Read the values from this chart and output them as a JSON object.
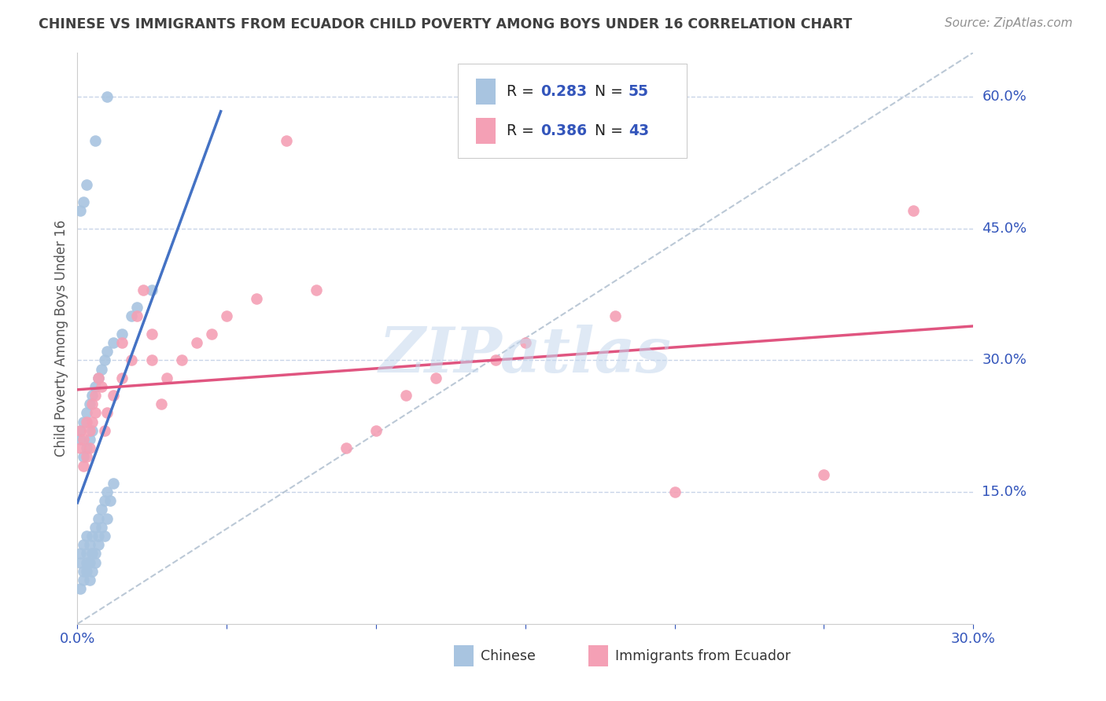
{
  "title": "CHINESE VS IMMIGRANTS FROM ECUADOR CHILD POVERTY AMONG BOYS UNDER 16 CORRELATION CHART",
  "source": "Source: ZipAtlas.com",
  "ylabel": "Child Poverty Among Boys Under 16",
  "R_chinese": 0.283,
  "N_chinese": 55,
  "R_ecuador": 0.386,
  "N_ecuador": 43,
  "color_chinese": "#a8c4e0",
  "color_ecuador": "#f4a0b5",
  "color_chinese_line": "#4472c4",
  "color_ecuador_line": "#e05580",
  "color_diagonal": "#aabbcc",
  "title_color": "#404040",
  "source_color": "#909090",
  "label_color": "#3355bb",
  "watermark_color": "#c5d8ee",
  "grid_color": "#c8d4e8",
  "background_color": "#ffffff",
  "xlim": [
    0.0,
    0.3
  ],
  "ylim": [
    0.0,
    0.65
  ],
  "ytick_positions": [
    0.15,
    0.3,
    0.45,
    0.6
  ],
  "ytick_labels": [
    "15.0%",
    "30.0%",
    "45.0%",
    "60.0%"
  ],
  "chinese_x": [
    0.001,
    0.001,
    0.001,
    0.002,
    0.002,
    0.002,
    0.003,
    0.003,
    0.003,
    0.003,
    0.004,
    0.004,
    0.004,
    0.005,
    0.005,
    0.005,
    0.006,
    0.006,
    0.006,
    0.007,
    0.007,
    0.007,
    0.008,
    0.008,
    0.009,
    0.009,
    0.01,
    0.01,
    0.011,
    0.012,
    0.001,
    0.001,
    0.002,
    0.002,
    0.003,
    0.003,
    0.004,
    0.004,
    0.005,
    0.005,
    0.006,
    0.007,
    0.008,
    0.009,
    0.01,
    0.012,
    0.015,
    0.018,
    0.02,
    0.025,
    0.001,
    0.002,
    0.003,
    0.006,
    0.01
  ],
  "chinese_y": [
    0.07,
    0.08,
    0.04,
    0.06,
    0.09,
    0.05,
    0.07,
    0.08,
    0.06,
    0.1,
    0.05,
    0.09,
    0.07,
    0.06,
    0.1,
    0.08,
    0.08,
    0.11,
    0.07,
    0.09,
    0.12,
    0.1,
    0.11,
    0.13,
    0.1,
    0.14,
    0.12,
    0.15,
    0.14,
    0.16,
    0.21,
    0.22,
    0.19,
    0.23,
    0.2,
    0.24,
    0.21,
    0.25,
    0.22,
    0.26,
    0.27,
    0.28,
    0.29,
    0.3,
    0.31,
    0.32,
    0.33,
    0.35,
    0.36,
    0.38,
    0.47,
    0.48,
    0.5,
    0.55,
    0.6
  ],
  "ecuador_x": [
    0.001,
    0.001,
    0.002,
    0.002,
    0.003,
    0.003,
    0.004,
    0.004,
    0.005,
    0.005,
    0.006,
    0.006,
    0.007,
    0.008,
    0.009,
    0.01,
    0.012,
    0.015,
    0.015,
    0.018,
    0.02,
    0.022,
    0.025,
    0.025,
    0.028,
    0.03,
    0.035,
    0.04,
    0.045,
    0.05,
    0.06,
    0.07,
    0.08,
    0.09,
    0.1,
    0.11,
    0.12,
    0.14,
    0.15,
    0.18,
    0.2,
    0.25,
    0.28
  ],
  "ecuador_y": [
    0.2,
    0.22,
    0.18,
    0.21,
    0.23,
    0.19,
    0.2,
    0.22,
    0.25,
    0.23,
    0.24,
    0.26,
    0.28,
    0.27,
    0.22,
    0.24,
    0.26,
    0.28,
    0.32,
    0.3,
    0.35,
    0.38,
    0.3,
    0.33,
    0.25,
    0.28,
    0.3,
    0.32,
    0.33,
    0.35,
    0.37,
    0.55,
    0.38,
    0.2,
    0.22,
    0.26,
    0.28,
    0.3,
    0.32,
    0.35,
    0.15,
    0.17,
    0.47
  ],
  "watermark": "ZIPatlas"
}
